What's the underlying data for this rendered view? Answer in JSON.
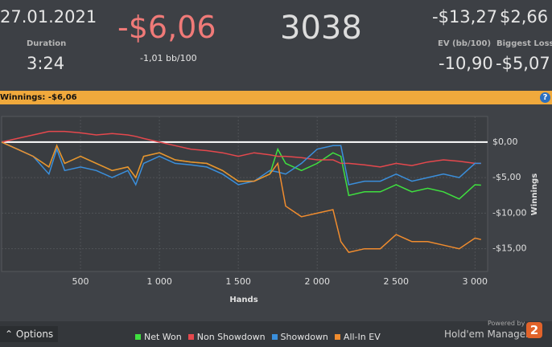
{
  "header": {
    "date": "27.01.2021",
    "duration_label": "Duration",
    "duration": "3:24",
    "winnings": "-$6,06",
    "bb100": "-1,01 bb/100",
    "hands": "3038",
    "stat_a": "-$13,27",
    "stat_b": "$2,66",
    "ev_label": "EV (bb/100)",
    "biggest_loss_label": "Biggest Loss",
    "ev": "-10,90",
    "biggest_loss": "-$5,07"
  },
  "section": {
    "label": "Winnings:",
    "value": "-$6,06",
    "help": "?"
  },
  "chart_data": {
    "type": "line",
    "x_label": "Hands",
    "y_label": "Winnings",
    "x": [
      0,
      100,
      200,
      300,
      350,
      400,
      500,
      600,
      700,
      800,
      850,
      900,
      1000,
      1100,
      1200,
      1300,
      1400,
      1500,
      1600,
      1700,
      1750,
      1800,
      1900,
      2000,
      2100,
      2150,
      2200,
      2300,
      2400,
      2500,
      2600,
      2700,
      2800,
      2900,
      3000,
      3038
    ],
    "series": [
      {
        "name": "Net Won",
        "color": "#3fe03f",
        "values": [
          0,
          -1,
          -2,
          -3.5,
          -0.5,
          -3,
          -2,
          -3,
          -4,
          -3.5,
          -5,
          -2,
          -1.5,
          -2.5,
          -2.8,
          -3,
          -4,
          -5.5,
          -5.5,
          -4.5,
          -1,
          -3,
          -4,
          -3,
          -1.5,
          -2,
          -7.5,
          -7,
          -7,
          -6,
          -7,
          -6.5,
          -7,
          -8,
          -6,
          -6.06
        ]
      },
      {
        "name": "Non Showdown",
        "color": "#e5484d",
        "values": [
          0,
          0.5,
          1,
          1.5,
          1.5,
          1.5,
          1.3,
          1,
          1.2,
          1,
          0.8,
          0.5,
          0,
          -0.5,
          -1,
          -1.2,
          -1.5,
          -2,
          -1.5,
          -1.8,
          -2,
          -2,
          -2.2,
          -2.5,
          -2.5,
          -3,
          -3,
          -3.2,
          -3.5,
          -3,
          -3.3,
          -2.8,
          -2.5,
          -2.7,
          -3,
          -3
        ]
      },
      {
        "name": "Showdown",
        "color": "#3a8fdc",
        "values": [
          0,
          -1,
          -2,
          -4.5,
          -1,
          -4,
          -3.5,
          -4,
          -5,
          -4,
          -6,
          -3,
          -2,
          -3,
          -3.2,
          -3.5,
          -4.5,
          -6,
          -5.5,
          -4,
          -4.2,
          -4.5,
          -3,
          -1,
          -0.5,
          -0.5,
          -6,
          -5.5,
          -5.5,
          -4.5,
          -5.5,
          -5,
          -4.5,
          -5,
          -3,
          -3
        ]
      },
      {
        "name": "All-In EV",
        "color": "#f08c2e",
        "values": [
          0,
          -1,
          -2,
          -3.5,
          -0.5,
          -3,
          -2,
          -3,
          -4,
          -3.5,
          -5,
          -2,
          -1.5,
          -2.5,
          -2.8,
          -3,
          -4,
          -5.5,
          -5.5,
          -4.5,
          -3,
          -9,
          -10.5,
          -10,
          -9.5,
          -14,
          -15.5,
          -15,
          -15,
          -13,
          -14,
          -14,
          -14.5,
          -15,
          -13.5,
          -13.7
        ]
      }
    ],
    "xlim": [
      0,
      3080
    ],
    "ylim": [
      -18.2,
      3.6
    ],
    "xticks": [
      500,
      {
        "value": 1000,
        "label": "1 000"
      },
      {
        "value": 1500,
        "label": "1 500"
      },
      {
        "value": 2000,
        "label": "2 000"
      },
      {
        "value": 2500,
        "label": "2 500"
      },
      {
        "value": 3000,
        "label": "3 000"
      }
    ],
    "yticks": [
      {
        "value": 0,
        "label": "$0,00"
      },
      {
        "value": -5,
        "label": "-$5,00"
      },
      {
        "value": -10,
        "label": "-$10,00"
      },
      {
        "value": -15,
        "label": "-$15,00"
      }
    ],
    "grid": true
  },
  "footer": {
    "options": "Options",
    "powered_by": "Powered by",
    "brand": "Hold'em Manager",
    "brand_number": "2"
  }
}
